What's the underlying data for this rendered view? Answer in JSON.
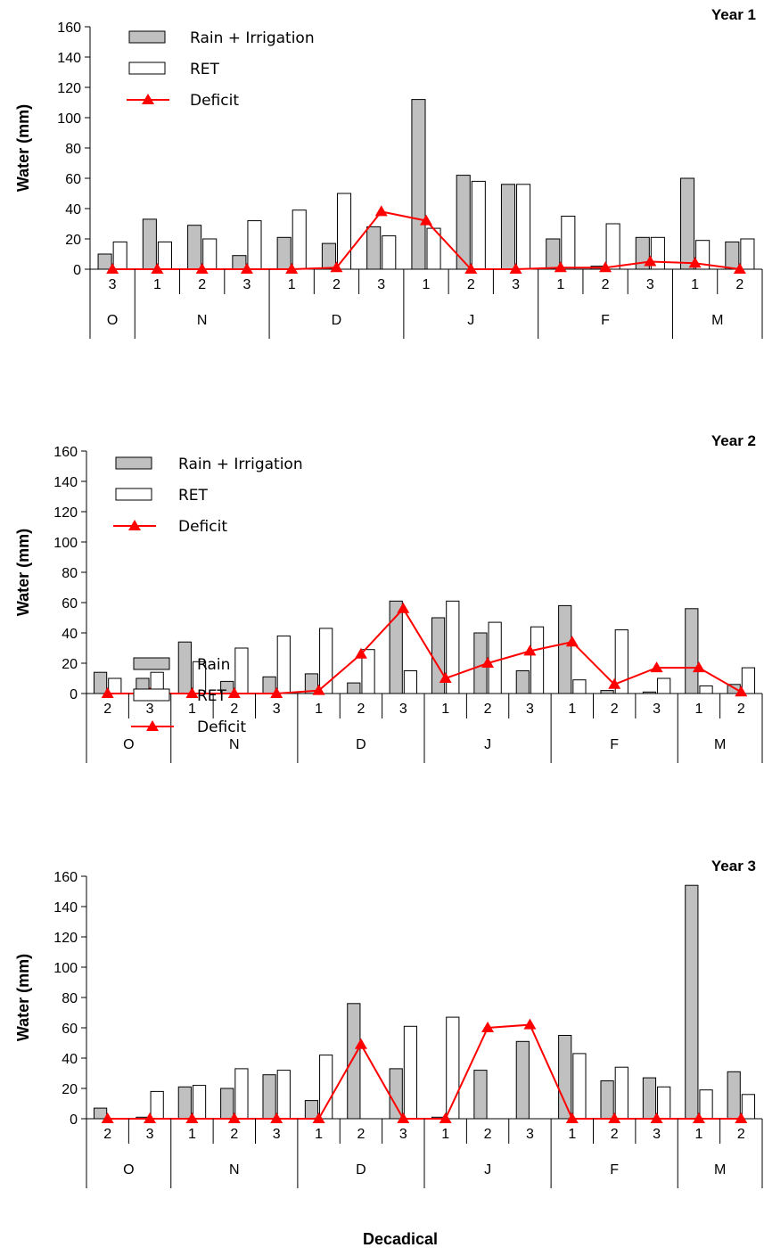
{
  "xlabel": "Decadical",
  "colors": {
    "bar1": "#c0c0c0",
    "bar2": "#ffffff",
    "deficit": "#ff0000",
    "axis": "#000000"
  },
  "chart_data": [
    {
      "type": "bar",
      "title": "Year 1",
      "ylabel": "Water (mm)",
      "ylim": [
        0,
        160
      ],
      "yticks": [
        0,
        20,
        40,
        60,
        80,
        100,
        120,
        140,
        160
      ],
      "categories": [
        "3",
        "1",
        "2",
        "3",
        "1",
        "2",
        "3",
        "1",
        "2",
        "3",
        "1",
        "2",
        "3",
        "1",
        "2"
      ],
      "months": [
        {
          "label": "O",
          "count": 1
        },
        {
          "label": "N",
          "count": 3
        },
        {
          "label": "D",
          "count": 3
        },
        {
          "label": "J",
          "count": 3
        },
        {
          "label": "F",
          "count": 3
        },
        {
          "label": "M",
          "count": 2
        }
      ],
      "legend": [
        "Rain + Irrigation",
        "RET",
        "Deficit"
      ],
      "legend_position": "top-left",
      "series": [
        {
          "name": "Rain + Irrigation",
          "type": "bar",
          "values": [
            10,
            33,
            29,
            9,
            21,
            17,
            28,
            112,
            62,
            56,
            20,
            2,
            21,
            60,
            18
          ]
        },
        {
          "name": "RET",
          "type": "bar",
          "values": [
            18,
            18,
            20,
            32,
            39,
            50,
            22,
            27,
            58,
            56,
            35,
            30,
            21,
            19,
            20
          ]
        },
        {
          "name": "Deficit",
          "type": "line",
          "values": [
            0,
            0,
            0,
            0,
            0,
            1,
            38,
            32,
            0,
            0,
            1,
            1,
            5,
            4,
            0
          ]
        }
      ]
    },
    {
      "type": "bar",
      "title": "Year 2",
      "ylabel": "Water (mm)",
      "ylim": [
        0,
        160
      ],
      "yticks": [
        0,
        20,
        40,
        60,
        80,
        100,
        120,
        140,
        160
      ],
      "categories": [
        "2",
        "3",
        "1",
        "2",
        "3",
        "1",
        "2",
        "3",
        "1",
        "2",
        "3",
        "1",
        "2",
        "3",
        "1",
        "2"
      ],
      "months": [
        {
          "label": "O",
          "count": 2
        },
        {
          "label": "N",
          "count": 3
        },
        {
          "label": "D",
          "count": 3
        },
        {
          "label": "J",
          "count": 3
        },
        {
          "label": "F",
          "count": 3
        },
        {
          "label": "M",
          "count": 2
        }
      ],
      "legend": [
        "Rain + Irrigation",
        "RET",
        "Deficit"
      ],
      "legend_position": "top-left",
      "series": [
        {
          "name": "Rain + Irrigation",
          "type": "bar",
          "values": [
            14,
            10,
            34,
            8,
            11,
            13,
            7,
            61,
            50,
            40,
            15,
            58,
            2,
            1,
            56,
            6
          ]
        },
        {
          "name": "RET",
          "type": "bar",
          "values": [
            10,
            14,
            21,
            30,
            38,
            43,
            29,
            15,
            61,
            47,
            44,
            9,
            42,
            10,
            5,
            17
          ]
        },
        {
          "name": "Deficit",
          "type": "line",
          "values": [
            0,
            0,
            0,
            0,
            0,
            2,
            26,
            56,
            10,
            20,
            28,
            34,
            6,
            17,
            17,
            1
          ]
        }
      ]
    },
    {
      "type": "bar",
      "title": "Year 3",
      "ylabel": "Water (mm)",
      "ylim": [
        0,
        160
      ],
      "yticks": [
        0,
        20,
        40,
        60,
        80,
        100,
        120,
        140,
        160
      ],
      "categories": [
        "2",
        "3",
        "1",
        "2",
        "3",
        "1",
        "2",
        "3",
        "1",
        "2",
        "3",
        "1",
        "2",
        "3",
        "1",
        "2"
      ],
      "months": [
        {
          "label": "O",
          "count": 2
        },
        {
          "label": "N",
          "count": 3
        },
        {
          "label": "D",
          "count": 3
        },
        {
          "label": "J",
          "count": 3
        },
        {
          "label": "F",
          "count": 3
        },
        {
          "label": "M",
          "count": 2
        }
      ],
      "legend": [
        "Rain",
        "RET",
        "Deficit"
      ],
      "legend_position": "top-left",
      "series": [
        {
          "name": "Rain",
          "type": "bar",
          "values": [
            7,
            1,
            21,
            20,
            29,
            12,
            76,
            33,
            1,
            32,
            51,
            55,
            25,
            27,
            154,
            31
          ]
        },
        {
          "name": "RET",
          "type": "bar",
          "values": [
            0,
            18,
            22,
            33,
            32,
            42,
            0,
            61,
            67,
            0,
            0,
            43,
            34,
            21,
            19,
            16
          ]
        },
        {
          "name": "Deficit",
          "type": "line",
          "values": [
            0,
            0,
            0,
            0,
            0,
            0,
            49,
            0,
            0,
            60,
            62,
            0,
            0,
            0,
            0,
            0
          ]
        }
      ]
    }
  ]
}
